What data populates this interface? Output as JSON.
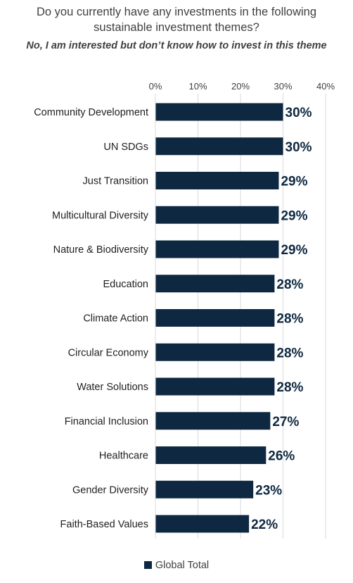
{
  "title_line1": "Do you currently have any investments in the following",
  "title_line2": "sustainable investment themes?",
  "subtitle": "No, I am interested but don’t know how to invest in this theme",
  "colors": {
    "bar": "#0e2841",
    "grid": "#d9d9d9",
    "value_label": "#0e2841"
  },
  "chart_data": {
    "type": "bar",
    "orientation": "horizontal",
    "categories": [
      "Community Development",
      "UN SDGs",
      "Just Transition",
      "Multicultural Diversity",
      "Nature & Biodiversity",
      "Education",
      "Climate Action",
      "Circular Economy",
      "Water Solutions",
      "Financial Inclusion",
      "Healthcare",
      "Gender Diversity",
      "Faith-Based Values"
    ],
    "series": [
      {
        "name": "Global Total",
        "values": [
          30,
          30,
          29,
          29,
          29,
          28,
          28,
          28,
          28,
          27,
          26,
          23,
          22
        ]
      }
    ],
    "value_labels": [
      "30%",
      "30%",
      "29%",
      "29%",
      "29%",
      "28%",
      "28%",
      "28%",
      "28%",
      "27%",
      "26%",
      "23%",
      "22%"
    ],
    "xlim": [
      0,
      40
    ],
    "x_ticks": [
      "0%",
      "10%",
      "20%",
      "30%",
      "40%"
    ],
    "x_tick_values": [
      0,
      10,
      20,
      30,
      40
    ],
    "grid": true,
    "legend_position": "bottom"
  }
}
